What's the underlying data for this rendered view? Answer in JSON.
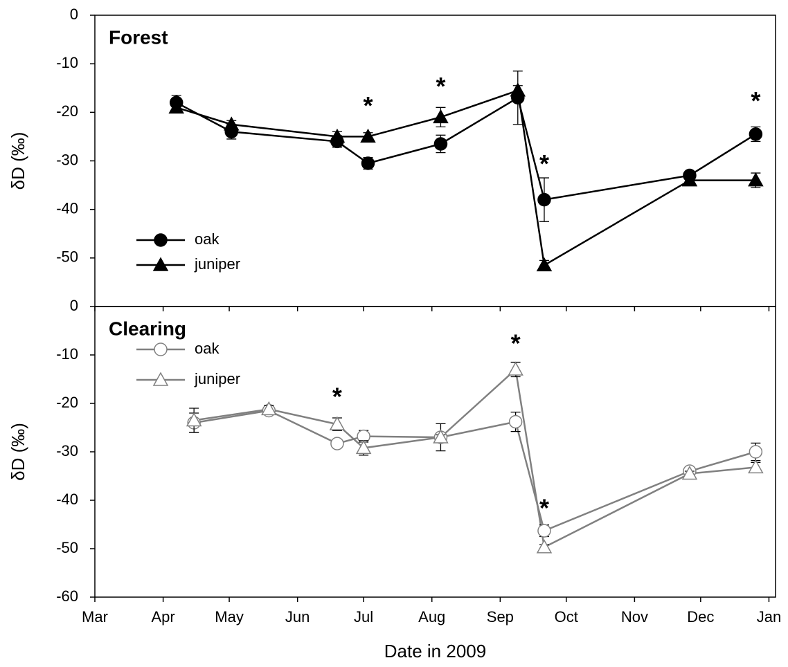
{
  "chart_data": [
    {
      "type": "line",
      "title": "Forest",
      "ylabel": "δD (‰)",
      "x": [
        97,
        122,
        170,
        184,
        217,
        252,
        264,
        330,
        360
      ],
      "xlim": [
        60,
        369
      ],
      "ylim": [
        -60,
        0
      ],
      "yticks": [
        0,
        -10,
        -20,
        -30,
        -40,
        -50
      ],
      "legend": "lower left",
      "series": [
        {
          "name": "oak",
          "color": "#000000",
          "marker": "circle",
          "fill": "#000000",
          "values": [
            -18,
            -24,
            -26,
            -30.5,
            -26.5,
            -17,
            -38,
            -33,
            -24.5
          ],
          "errors": [
            1.5,
            1.5,
            1.2,
            1.2,
            1.8,
            5.5,
            4.5,
            0.5,
            1.5
          ]
        },
        {
          "name": "juniper",
          "color": "#000000",
          "marker": "triangle",
          "fill": "#000000",
          "values": [
            -19,
            -22.5,
            -25,
            -25,
            -21,
            -15.5,
            -51.5,
            -34,
            -34
          ],
          "errors": [
            0.5,
            0.8,
            1,
            0.8,
            2,
            1,
            1,
            0.5,
            1.5
          ]
        }
      ],
      "annotations": [
        {
          "text": "*",
          "x": 184,
          "y": -19
        },
        {
          "text": "*",
          "x": 217,
          "y": -15
        },
        {
          "text": "*",
          "x": 264,
          "y": -31
        },
        {
          "text": "*",
          "x": 360,
          "y": -18
        }
      ]
    },
    {
      "type": "line",
      "title": "Clearing",
      "ylabel": "δD (‰)",
      "xlabel": "Date in 2009",
      "x": [
        105,
        139,
        170,
        182,
        217,
        251,
        264,
        330,
        360
      ],
      "xlim": [
        60,
        369
      ],
      "ylim": [
        -60,
        0
      ],
      "yticks": [
        0,
        -10,
        -20,
        -30,
        -40,
        -50,
        -60
      ],
      "xticks": [
        {
          "value": 60,
          "label": "Mar"
        },
        {
          "value": 91,
          "label": "Apr"
        },
        {
          "value": 121,
          "label": "May"
        },
        {
          "value": 152,
          "label": "Jun"
        },
        {
          "value": 182,
          "label": "Jul"
        },
        {
          "value": 213,
          "label": "Aug"
        },
        {
          "value": 244,
          "label": "Sep"
        },
        {
          "value": 274,
          "label": "Oct"
        },
        {
          "value": 305,
          "label": "Nov"
        },
        {
          "value": 335,
          "label": "Dec"
        },
        {
          "value": 366,
          "label": "Jan"
        }
      ],
      "legend": "upper left",
      "series": [
        {
          "name": "oak",
          "color": "#808080",
          "marker": "circle",
          "fill": "#ffffff",
          "values": [
            -24,
            -21.5,
            -28.3,
            -26.8,
            -27,
            -23.8,
            -46.3,
            -34,
            -30
          ],
          "errors": [
            2,
            0.5,
            0.5,
            1.2,
            2.8,
            2,
            1.2,
            0.3,
            1.8
          ]
        },
        {
          "name": "juniper",
          "color": "#808080",
          "marker": "triangle",
          "fill": "#ffffff",
          "values": [
            -23.5,
            -21.2,
            -24.3,
            -29.2,
            -27,
            -13,
            -49.7,
            -34.5,
            -33.2
          ],
          "errors": [
            2.5,
            0.8,
            1.3,
            1.5,
            0.5,
            1.5,
            0.5,
            0.5,
            1
          ]
        }
      ],
      "annotations": [
        {
          "text": "*",
          "x": 170,
          "y": -19
        },
        {
          "text": "*",
          "x": 251,
          "y": -8
        },
        {
          "text": "*",
          "x": 264,
          "y": -42
        }
      ]
    }
  ]
}
